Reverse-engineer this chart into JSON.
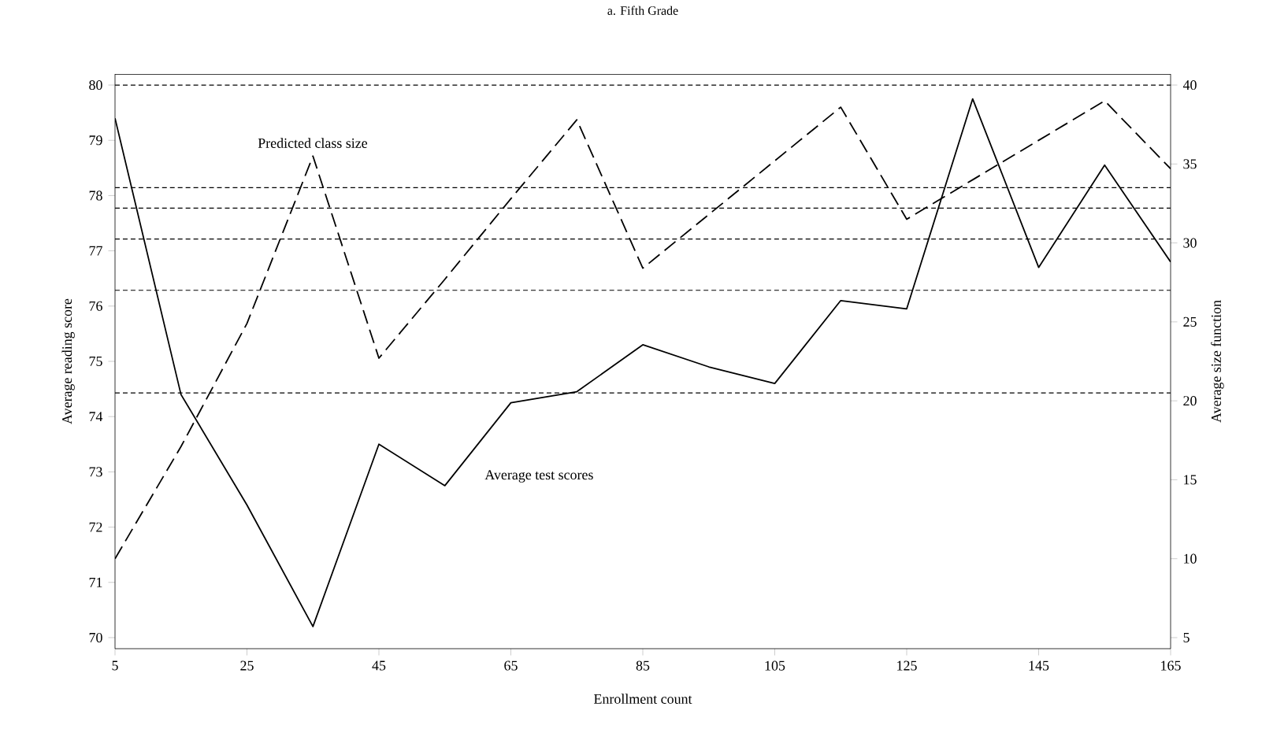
{
  "chart_data": {
    "type": "line",
    "title": "a. Fifth Grade",
    "xlabel": "Enrollment count",
    "ylabel": "Average reading score",
    "y2label": "Average size function",
    "x": [
      5,
      15,
      25,
      35,
      45,
      55,
      65,
      75,
      85,
      95,
      105,
      115,
      125,
      135,
      145,
      155,
      165
    ],
    "series": [
      {
        "name": "Average test scores",
        "color": "#000000",
        "line_style": "solid",
        "values": [
          79.4,
          74.4,
          72.4,
          70.2,
          73.5,
          72.75,
          74.25,
          74.45,
          75.3,
          74.9,
          74.6,
          76.1,
          75.95,
          79.75,
          76.7,
          78.55,
          76.8
        ]
      },
      {
        "name": "Predicted class size",
        "color": "#000000",
        "line_style": "dashed",
        "axis": "y2",
        "values": [
          10,
          17.1,
          24.9,
          35.5,
          22.7,
          27.7,
          32.8,
          37.8,
          28.4,
          31.8,
          35.2,
          38.6,
          31.5,
          34,
          36.5,
          39,
          34.7
        ]
      }
    ],
    "xlim": [
      5,
      165
    ],
    "xticks": [
      5,
      25,
      45,
      65,
      85,
      105,
      125,
      145,
      165
    ],
    "ylim": [
      69.8,
      80.2
    ],
    "yticks": [
      70,
      71,
      72,
      73,
      74,
      75,
      76,
      77,
      78,
      79,
      80
    ],
    "y2lim": [
      4.3,
      40.7
    ],
    "y2ticks": [
      5,
      10,
      15,
      20,
      25,
      30,
      35,
      40
    ],
    "ref_lines": [
      {
        "axis": "y2",
        "value": 40,
        "line_style": "dashed"
      },
      {
        "axis": "y2",
        "value": 33.5,
        "line_style": "dashed"
      },
      {
        "axis": "y2",
        "value": 32.2,
        "line_style": "dashed"
      },
      {
        "axis": "y2",
        "value": 30.25,
        "line_style": "dashed"
      },
      {
        "axis": "y2",
        "value": 27,
        "line_style": "dashed"
      },
      {
        "axis": "y2",
        "value": 20.5,
        "line_style": "dashed"
      }
    ],
    "grid": false,
    "legend": false,
    "marker": "none"
  }
}
